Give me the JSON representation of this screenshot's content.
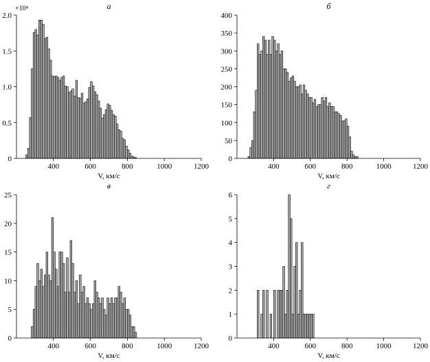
{
  "chart_data": [
    {
      "type": "bar",
      "label": "а",
      "xlabel": "V, км/с",
      "xlim": [
        200,
        1200
      ],
      "xticks": [
        "400",
        "600",
        "800",
        "1000",
        "1200"
      ],
      "ylim": [
        0,
        2.0
      ],
      "yticks": [
        "0",
        "0.5",
        "1.0",
        "1.5",
        "2.0"
      ],
      "multiplier": "×10⁴",
      "bin_start": 250,
      "bin_width": 10,
      "values": [
        0.05,
        0.14,
        0.57,
        1.25,
        1.76,
        1.8,
        1.72,
        1.93,
        1.93,
        1.87,
        1.67,
        1.69,
        1.53,
        1.37,
        1.15,
        1.14,
        1.15,
        1.13,
        1.09,
        1.13,
        1.15,
        1.01,
        1.0,
        0.92,
        0.94,
        0.97,
        0.87,
        1.09,
        0.85,
        0.84,
        0.91,
        0.77,
        0.79,
        0.83,
        0.99,
        1.07,
        1.01,
        0.93,
        0.89,
        0.8,
        0.7,
        0.56,
        0.61,
        0.68,
        0.76,
        0.74,
        0.67,
        0.61,
        0.59,
        0.48,
        0.4,
        0.38,
        0.28,
        0.26,
        0.17,
        0.12,
        0.07,
        0.03,
        0.02,
        0.01
      ]
    },
    {
      "type": "bar",
      "label": "б",
      "xlabel": "V, км/с",
      "xlim": [
        200,
        1200
      ],
      "xticks": [
        "400",
        "600",
        "800",
        "1000",
        "1200"
      ],
      "ylim": [
        0,
        400
      ],
      "yticks": [
        "0",
        "50",
        "100",
        "150",
        "200",
        "250",
        "300",
        "350",
        "400"
      ],
      "bin_start": 260,
      "bin_width": 10,
      "values": [
        5,
        30,
        50,
        130,
        190,
        320,
        290,
        300,
        340,
        330,
        290,
        330,
        290,
        340,
        330,
        300,
        320,
        290,
        300,
        250,
        250,
        240,
        215,
        225,
        230,
        215,
        200,
        200,
        205,
        180,
        205,
        190,
        180,
        170,
        170,
        155,
        165,
        145,
        150,
        150,
        170,
        160,
        170,
        145,
        155,
        145,
        145,
        130,
        130,
        125,
        120,
        105,
        105,
        110,
        90,
        60,
        20,
        10,
        5,
        5
      ]
    },
    {
      "type": "bar",
      "label": "в",
      "xlabel": "V, км/с",
      "xlim": [
        200,
        1200
      ],
      "xticks": [
        "400",
        "600",
        "800",
        "1000",
        "1200"
      ],
      "ylim": [
        0,
        25
      ],
      "yticks": [
        "0",
        "5",
        "10",
        "15",
        "20",
        "25"
      ],
      "bin_start": 280,
      "bin_width": 10,
      "values": [
        2,
        5,
        9,
        13,
        10,
        12,
        9,
        11,
        15,
        11,
        10,
        21,
        15,
        12,
        9,
        15,
        15,
        13,
        8,
        14,
        8,
        17,
        13,
        8,
        10,
        6,
        11,
        8,
        9,
        6,
        7,
        6,
        5,
        6,
        10,
        8,
        7,
        6,
        7,
        5,
        4,
        7,
        6,
        7,
        6,
        7,
        7,
        9,
        8,
        6,
        7,
        5,
        5,
        4,
        2,
        2,
        1
      ]
    },
    {
      "type": "bar",
      "label": "г",
      "xlabel": "V, км/с",
      "xlim": [
        200,
        1200
      ],
      "xticks": [
        "400",
        "600",
        "800",
        "1000",
        "1200"
      ],
      "ylim": [
        0,
        6
      ],
      "yticks": [
        "0",
        "1",
        "2",
        "3",
        "4",
        "5",
        "6"
      ],
      "bin_start": 310,
      "bin_width": 10,
      "values": [
        2,
        0,
        1,
        2,
        0,
        2,
        0,
        1,
        0,
        2,
        0,
        2,
        2,
        2,
        3,
        1,
        2,
        6,
        5,
        1,
        3,
        4,
        1,
        2,
        4,
        1,
        1,
        1,
        1,
        1,
        1
      ]
    }
  ]
}
